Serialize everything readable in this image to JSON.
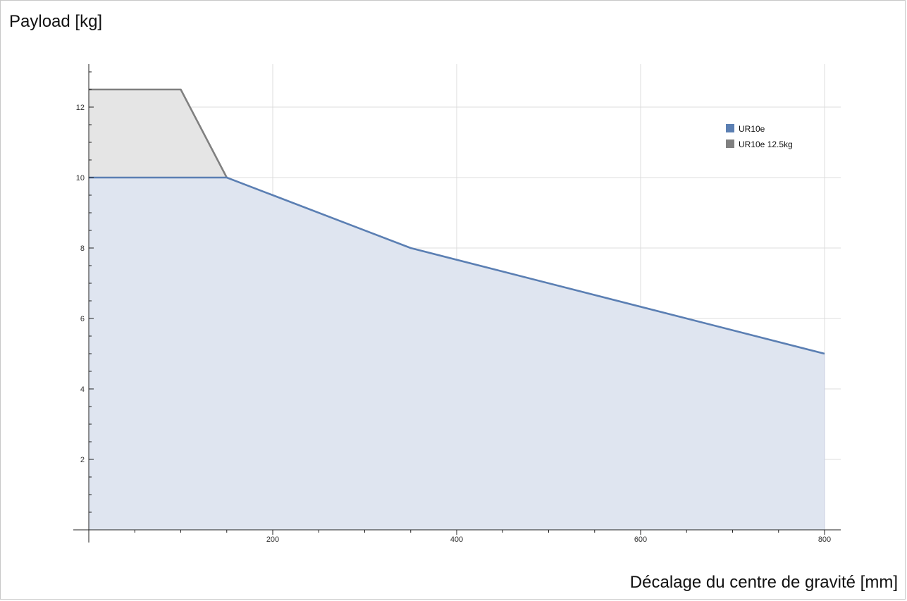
{
  "chart_data": {
    "type": "area",
    "ylabel": "Payload [kg]",
    "xlabel": "Décalage du centre de gravité [mm]",
    "xlim": [
      0,
      820
    ],
    "ylim": [
      0,
      13.2
    ],
    "xticks": [
      200,
      400,
      600,
      800
    ],
    "yticks": [
      2,
      4,
      6,
      8,
      10,
      12
    ],
    "grid": true,
    "legend_position": "top-right",
    "series": [
      {
        "name": "UR10e",
        "color": "#5b7fb3",
        "fill": "#dfe5f0",
        "points": [
          [
            0,
            10
          ],
          [
            150,
            10
          ],
          [
            350,
            8
          ],
          [
            800,
            5
          ]
        ]
      },
      {
        "name": "UR10e 12.5kg",
        "color": "#808080",
        "fill": "#e5e5e5",
        "points": [
          [
            0,
            12.5
          ],
          [
            100,
            12.5
          ],
          [
            150,
            10
          ]
        ]
      }
    ]
  }
}
